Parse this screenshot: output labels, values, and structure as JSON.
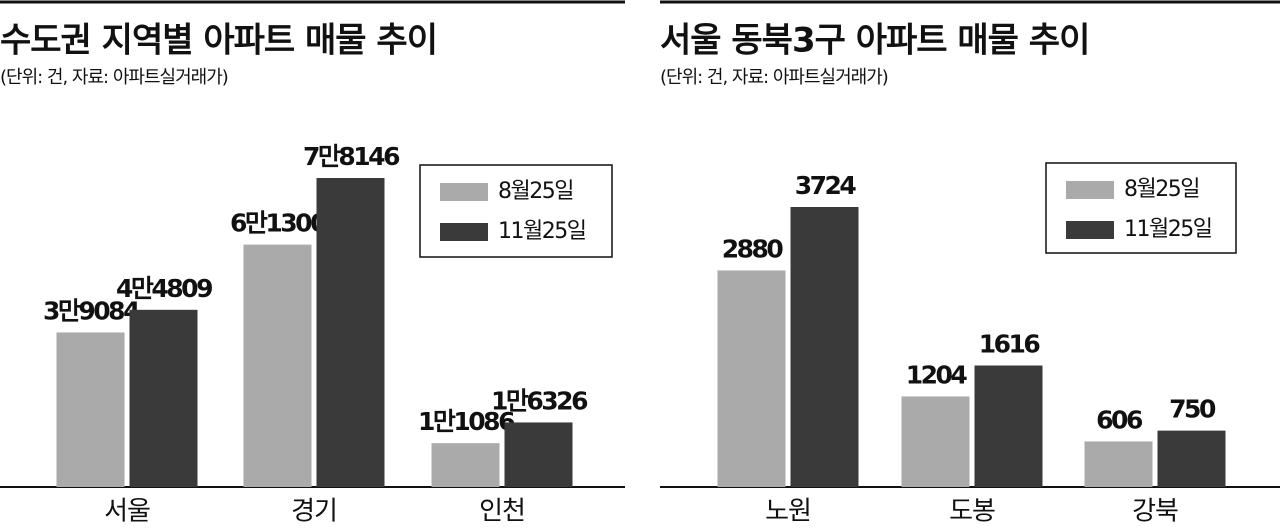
{
  "chart_data": [
    {
      "type": "bar",
      "title": "수도권 지역별 아파트 매물 추이",
      "subtitle": "(단위: 건, 자료: 아파트실거래가)",
      "categories": [
        "서울",
        "경기",
        "인천"
      ],
      "series": [
        {
          "name": "8월25일",
          "color": "#aaaaaa",
          "values": [
            39084,
            61300,
            11086
          ],
          "value_labels": [
            "3만9084",
            "6만1300",
            "1만1086"
          ]
        },
        {
          "name": "11월25일",
          "color": "#3a3a3a",
          "values": [
            44809,
            78146,
            16326
          ],
          "value_labels": [
            "4만4809",
            "7만8146",
            "1만6326"
          ]
        }
      ],
      "legend": "upper right"
    },
    {
      "type": "bar",
      "title": "서울 동북3구 아파트 매물 추이",
      "subtitle": "(단위: 건, 자료: 아파트실거래가)",
      "categories": [
        "노원",
        "도봉",
        "강북"
      ],
      "series": [
        {
          "name": "8월25일",
          "color": "#aaaaaa",
          "values": [
            2880,
            1204,
            606
          ]
        },
        {
          "name": "11월25일",
          "color": "#3a3a3a",
          "values": [
            3724,
            1616,
            750
          ]
        }
      ],
      "legend": "upper right"
    }
  ]
}
